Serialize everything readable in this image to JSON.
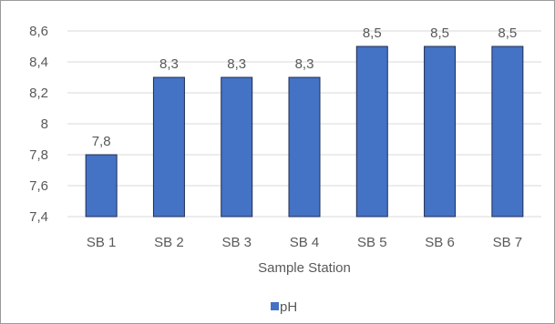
{
  "chart_data": {
    "type": "bar",
    "categories": [
      "SB 1",
      "SB 2",
      "SB 3",
      "SB 4",
      "SB 5",
      "SB 6",
      "SB 7"
    ],
    "series": [
      {
        "name": "pH",
        "values": [
          7.8,
          8.3,
          8.3,
          8.3,
          8.5,
          8.5,
          8.5
        ],
        "data_labels": [
          "7,8",
          "8,3",
          "8,3",
          "8,3",
          "8,5",
          "8,5",
          "8,5"
        ]
      }
    ],
    "xlabel": "Sample Station",
    "ylabel": "",
    "ylim": [
      7.4,
      8.6
    ],
    "y_ticks": [
      7.4,
      7.6,
      7.8,
      8,
      8.2,
      8.4,
      8.6
    ],
    "y_tick_labels": [
      "7,4",
      "7,6",
      "7,8",
      "8",
      "8,2",
      "8,4",
      "8,6"
    ],
    "grid": true,
    "legend_position": "bottom",
    "colors": {
      "bar_fill": "#4472c4",
      "bar_stroke": "#1f2d55",
      "grid": "#d9d9d9",
      "text": "#595959"
    }
  }
}
